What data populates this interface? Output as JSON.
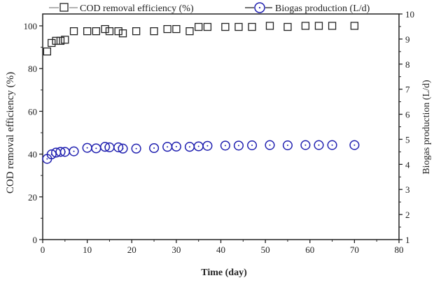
{
  "chart_data": {
    "type": "scatter",
    "xlabel": "Time (day)",
    "ylabel": "COD removal efficiency (%)",
    "y2label": "Biogas production (L/d)",
    "xlim": [
      0,
      80
    ],
    "ylim": [
      0,
      100
    ],
    "y2lim": [
      1,
      10
    ],
    "xticks": [
      0,
      10,
      20,
      30,
      40,
      50,
      60,
      70,
      80
    ],
    "yticks": [
      0,
      20,
      40,
      60,
      80,
      100
    ],
    "y2ticks": [
      1,
      2,
      3,
      4,
      5,
      6,
      7,
      8,
      9,
      10
    ],
    "grid": false,
    "legend": "top",
    "x": [
      1,
      2,
      3,
      4,
      5,
      7,
      10,
      12,
      14,
      15,
      17,
      18,
      21,
      25,
      28,
      30,
      33,
      35,
      37,
      41,
      44,
      47,
      51,
      55,
      59,
      62,
      65,
      70
    ],
    "series": [
      {
        "name": "COD removal efficiency (%)",
        "axis": "left",
        "marker": "square",
        "color": "#222222",
        "values": [
          88,
          92,
          93,
          93,
          93.5,
          97.5,
          97.5,
          97.5,
          98.5,
          97.5,
          97.5,
          96.5,
          97.5,
          97.5,
          98.5,
          98.5,
          97.5,
          99.5,
          99.5,
          99.5,
          99.5,
          99.5,
          100,
          99.5,
          100,
          100,
          100,
          100
        ]
      },
      {
        "name": "Biogas production (L/d)",
        "axis": "right",
        "marker": "circle-dot",
        "color": "#2020b0",
        "values": [
          4.22,
          4.4,
          4.47,
          4.5,
          4.5,
          4.52,
          4.66,
          4.64,
          4.7,
          4.68,
          4.68,
          4.63,
          4.63,
          4.65,
          4.7,
          4.71,
          4.7,
          4.72,
          4.74,
          4.75,
          4.75,
          4.76,
          4.77,
          4.76,
          4.77,
          4.77,
          4.77,
          4.77
        ]
      }
    ]
  }
}
